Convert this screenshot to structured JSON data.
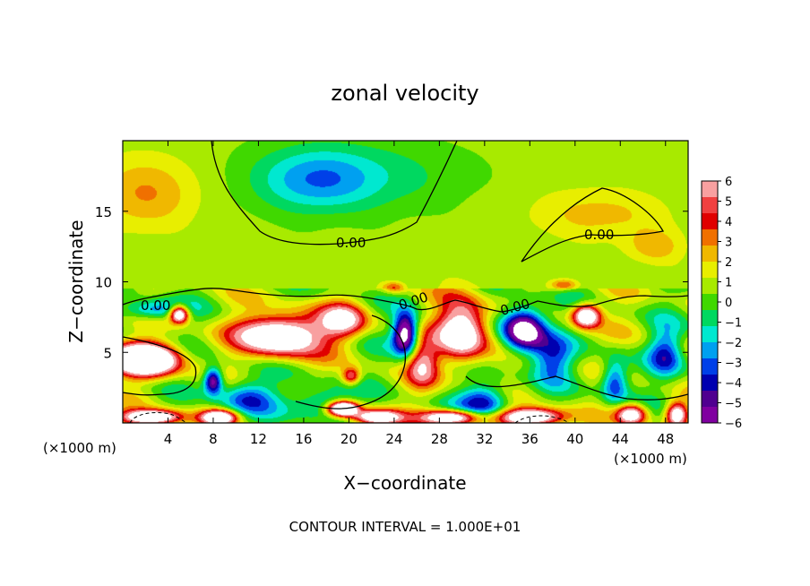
{
  "chart_data": {
    "type": "heatmap",
    "title": "zonal velocity",
    "xlabel": "X−coordinate",
    "ylabel": "Z−coordinate",
    "x_unit_left": "(×1000 m)",
    "x_unit_right": "(×1000 m)",
    "footer": "CONTOUR INTERVAL = 1.000E+01",
    "xlim": [
      0,
      50
    ],
    "ylim": [
      0,
      20
    ],
    "x_ticks": [
      "4",
      "8",
      "12",
      "16",
      "20",
      "24",
      "28",
      "32",
      "36",
      "40",
      "44",
      "48"
    ],
    "y_ticks": [
      "5",
      "10",
      "15"
    ],
    "colorbar": {
      "ticks": [
        "6",
        "5",
        "4",
        "3",
        "2",
        "1",
        "0",
        "−1",
        "−2",
        "−3",
        "−4",
        "−5",
        "−6"
      ],
      "range": [
        -6,
        6
      ],
      "colors": [
        "#f8a0a0",
        "#f04040",
        "#e00000",
        "#f07000",
        "#f0b800",
        "#e8ee00",
        "#a8ea00",
        "#40d800",
        "#00d860",
        "#00e8d0",
        "#00a0f0",
        "#0040e8",
        "#0000b0",
        "#500090",
        "#8000a0"
      ]
    },
    "contour_labels": [
      "0.00",
      "0.00",
      "0.00",
      "0.00",
      "0.00"
    ],
    "blobs": [
      {
        "x": 17,
        "z": 17.2,
        "v": -2.4,
        "sx": 5,
        "sz": 2.2
      },
      {
        "x": 21,
        "z": 17.5,
        "v": -1.6,
        "sx": 9,
        "sz": 2.5
      },
      {
        "x": 2,
        "z": 16.3,
        "v": 2.2,
        "sx": 4.5,
        "sz": 2.5
      },
      {
        "x": 42,
        "z": 14.8,
        "v": 1.6,
        "sx": 6,
        "sz": 1.8
      },
      {
        "x": 47,
        "z": 12.5,
        "v": 1.8,
        "sx": 2.5,
        "sz": 1.2
      },
      {
        "x": 14,
        "z": 6.2,
        "v": 10,
        "sx": 3.6,
        "sz": 1.4
      },
      {
        "x": 19.5,
        "z": 7.3,
        "v": 6,
        "sx": 2,
        "sz": 1.2
      },
      {
        "x": 30,
        "z": 6.5,
        "v": 9,
        "sx": 2.2,
        "sz": 2.1
      },
      {
        "x": 26.5,
        "z": 4.2,
        "v": 5,
        "sx": 1.4,
        "sz": 1.6
      },
      {
        "x": 41,
        "z": 7.6,
        "v": 9,
        "sx": 1.2,
        "sz": 0.8
      },
      {
        "x": 2,
        "z": 4.5,
        "v": 13,
        "sx": 2.8,
        "sz": 1.1
      },
      {
        "x": 2.5,
        "z": 8.0,
        "v": -4,
        "sx": 2.5,
        "sz": 0.7
      },
      {
        "x": 5,
        "z": 7.7,
        "v": 9,
        "sx": 0.8,
        "sz": 0.6
      },
      {
        "x": 25,
        "z": 6.3,
        "v": -9,
        "sx": 1.1,
        "sz": 1.5
      },
      {
        "x": 35.5,
        "z": 6.6,
        "v": -9,
        "sx": 1.9,
        "sz": 1.6
      },
      {
        "x": 38,
        "z": 4.5,
        "v": -4,
        "sx": 1.8,
        "sz": 1.6
      },
      {
        "x": 43.5,
        "z": 3.0,
        "v": -5,
        "sx": 1.2,
        "sz": 1.5
      },
      {
        "x": 48,
        "z": 5,
        "v": -4,
        "sx": 1.5,
        "sz": 1.7
      },
      {
        "x": 8,
        "z": 3,
        "v": -7,
        "sx": 0.8,
        "sz": 0.9
      },
      {
        "x": 11,
        "z": 1.8,
        "v": -4,
        "sx": 2.5,
        "sz": 1.3
      },
      {
        "x": 17.5,
        "z": 1.5,
        "v": -3.5,
        "sx": 2.5,
        "sz": 1.1
      },
      {
        "x": 19.5,
        "z": 1.0,
        "v": 12,
        "sx": 1.3,
        "sz": 0.5
      },
      {
        "x": 20.2,
        "z": 3.3,
        "v": 5,
        "sx": 0.8,
        "sz": 0.6
      },
      {
        "x": 32,
        "z": 1.5,
        "v": -5,
        "sx": 2.2,
        "sz": 1.2
      },
      {
        "x": 45,
        "z": 0.6,
        "v": 8,
        "sx": 1.3,
        "sz": 0.7
      },
      {
        "x": 49,
        "z": 0.6,
        "v": 8,
        "sx": 0.9,
        "sz": 0.8
      },
      {
        "x": 36,
        "z": 0.4,
        "v": 10,
        "sx": 2.8,
        "sz": 0.6
      },
      {
        "x": 29,
        "z": 0.4,
        "v": 9,
        "sx": 2.5,
        "sz": 0.5
      },
      {
        "x": 22.5,
        "z": 0.4,
        "v": 9,
        "sx": 2,
        "sz": 0.5
      },
      {
        "x": 8.5,
        "z": 0.4,
        "v": 9,
        "sx": 1.5,
        "sz": 0.5
      },
      {
        "x": 2.5,
        "z": 0.4,
        "v": 10,
        "sx": 2.5,
        "sz": 0.5
      },
      {
        "x": 24,
        "z": 9.6,
        "v": 3,
        "sx": 1,
        "sz": 0.4
      },
      {
        "x": 39,
        "z": 9.8,
        "v": 3,
        "sx": 1.2,
        "sz": 0.4
      }
    ]
  }
}
